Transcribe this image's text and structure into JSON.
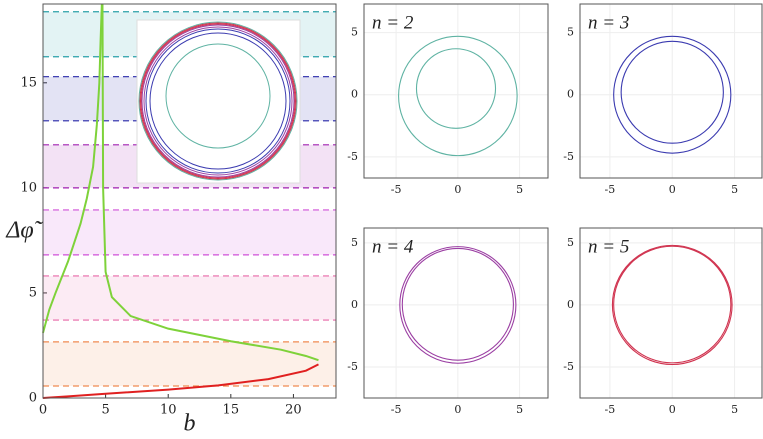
{
  "chart_data": [
    {
      "type": "line",
      "xlabel": "b",
      "ylabel": "Δφ̃",
      "xlim": [
        0,
        23.4
      ],
      "ylim": [
        0,
        18.75
      ],
      "xticks": [
        0,
        5,
        10,
        15,
        20
      ],
      "yticks": [
        0,
        5,
        10,
        15
      ],
      "bands": [
        {
          "y": [
            0.57,
            2.67
          ],
          "color": "#f08a50"
        },
        {
          "y": [
            3.71,
            5.81
          ],
          "color": "#e868a8"
        },
        {
          "y": [
            6.81,
            8.95
          ],
          "color": "#d050d8"
        },
        {
          "y": [
            10,
            12.05
          ],
          "color": "#a020b0"
        },
        {
          "y": [
            13.19,
            15.29
          ],
          "color": "#2828a8"
        },
        {
          "y": [
            16.24,
            18.38
          ],
          "color": "#2aa0a8"
        }
      ],
      "series": [
        {
          "color": "#7ed23a",
          "x": [
            0,
            0.5,
            1,
            2,
            3,
            3.5,
            4,
            4.3,
            4.5,
            4.6,
            4.7
          ],
          "y": [
            3.1,
            4.2,
            5,
            6.5,
            8.3,
            9.5,
            11,
            13,
            15,
            17,
            18.75
          ]
        },
        {
          "color": "#7ed23a",
          "x": [
            4.75,
            4.8,
            5,
            5.5,
            7,
            10,
            15,
            19,
            21,
            22
          ],
          "y": [
            18.75,
            10,
            6,
            4.8,
            3.9,
            3.3,
            2.7,
            2.3,
            2.0,
            1.8
          ]
        },
        {
          "color": "#e02020",
          "x": [
            22,
            21,
            18,
            14,
            10,
            5,
            2,
            0
          ],
          "y": [
            1.6,
            1.3,
            0.9,
            0.6,
            0.4,
            0.2,
            0.08,
            0
          ]
        }
      ]
    },
    {
      "type": "circles",
      "title": "n = 2",
      "xlim": [
        -7.6,
        7.3
      ],
      "ylim": [
        -6.7,
        7.3
      ],
      "xticks": [
        -5,
        0,
        5
      ],
      "yticks": [
        -5,
        0,
        5
      ],
      "color": "#5fb3a3",
      "curves": [
        {
          "cx": 0,
          "cy": -0.1,
          "r": 4.8
        },
        {
          "cx": -0.15,
          "cy": 0.5,
          "r": 3.2
        }
      ]
    },
    {
      "type": "circles",
      "title": "n = 3",
      "xlim": [
        -7.4,
        7.2
      ],
      "ylim": [
        -6.7,
        7.3
      ],
      "xticks": [
        -5,
        0,
        5
      ],
      "yticks": [
        -5,
        0,
        5
      ],
      "color": "#3b3bb0",
      "curves": [
        {
          "cx": 0,
          "cy": 0,
          "r": 4.7
        },
        {
          "cx": 0,
          "cy": 0.2,
          "r": 4.1
        }
      ]
    },
    {
      "type": "circles",
      "title": "n = 4",
      "xlim": [
        -7.6,
        7.3
      ],
      "ylim": [
        -7.5,
        6.2
      ],
      "xticks": [
        -5,
        0,
        5
      ],
      "yticks": [
        -5,
        0,
        5
      ],
      "color": "#9b3fa3",
      "curves": [
        {
          "cx": 0,
          "cy": 0,
          "r": 4.7
        },
        {
          "cx": 0,
          "cy": 0.05,
          "r": 4.5
        }
      ]
    },
    {
      "type": "circles",
      "title": "n = 5",
      "xlim": [
        -7.4,
        7.2
      ],
      "ylim": [
        -7.5,
        6.2
      ],
      "xticks": [
        -5,
        0,
        5
      ],
      "yticks": [
        -5,
        0,
        5
      ],
      "color": "#d0334f",
      "curves": [
        {
          "cx": 0,
          "cy": 0,
          "r": 4.8
        },
        {
          "cx": 0,
          "cy": 0.03,
          "r": 4.7
        }
      ]
    }
  ]
}
